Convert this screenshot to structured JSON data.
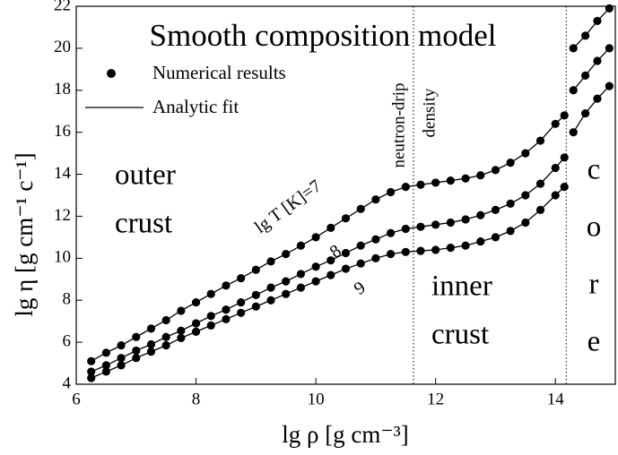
{
  "chart_data": {
    "type": "line",
    "title": "Smooth composition model",
    "x_label": "lg ρ  [g cm⁻³]",
    "y_label": "lg η  [g cm⁻¹ c⁻¹]",
    "xlim": [
      6,
      15
    ],
    "xticks": [
      6,
      8,
      10,
      12,
      14
    ],
    "ylim": [
      4,
      22
    ],
    "yticks": [
      4,
      6,
      8,
      10,
      12,
      14,
      16,
      18,
      20,
      22
    ],
    "legend": [
      "Numerical results",
      "Analytic fit"
    ],
    "reference_lines": [
      11.63,
      14.18
    ],
    "annotations": [
      "outer",
      "crust",
      "inner",
      "crust",
      "c",
      "o",
      "r",
      "e",
      "neutron-drip",
      "density"
    ],
    "x": [
      6.25,
      6.5,
      6.75,
      7,
      7.25,
      7.5,
      7.75,
      8,
      8.25,
      8.5,
      8.75,
      9,
      9.25,
      9.5,
      9.75,
      10,
      10.25,
      10.5,
      10.75,
      11,
      11.25,
      11.5,
      11.75,
      12,
      12.25,
      12.5,
      12.75,
      13,
      13.25,
      13.5,
      13.75,
      14,
      14.15,
      14.2,
      14.3,
      14.5,
      14.7,
      14.9
    ],
    "series": [
      {
        "name": "lg T [K]=7",
        "color": "#000000",
        "values": [
          5.1,
          5.5,
          5.85,
          6.25,
          6.65,
          7.05,
          7.5,
          7.9,
          8.3,
          8.7,
          9.05,
          9.45,
          9.85,
          10.2,
          10.6,
          11.0,
          11.45,
          11.9,
          12.35,
          12.8,
          13.15,
          13.4,
          13.5,
          13.6,
          13.7,
          13.8,
          13.95,
          14.2,
          14.55,
          15.0,
          15.6,
          16.4,
          16.8,
          null,
          20.0,
          20.6,
          21.3,
          21.9
        ]
      },
      {
        "name": "8",
        "color": "#000000",
        "values": [
          4.6,
          4.9,
          5.25,
          5.6,
          5.9,
          6.25,
          6.55,
          6.9,
          7.25,
          7.55,
          7.9,
          8.25,
          8.6,
          8.9,
          9.25,
          9.6,
          9.9,
          10.25,
          10.6,
          10.9,
          11.2,
          11.4,
          11.5,
          11.6,
          11.7,
          11.85,
          12.05,
          12.3,
          12.6,
          13.0,
          13.55,
          14.3,
          14.8,
          null,
          18.0,
          18.7,
          19.4,
          20.0
        ]
      },
      {
        "name": "9",
        "color": "#000000",
        "values": [
          4.3,
          4.6,
          4.9,
          5.25,
          5.55,
          5.85,
          6.2,
          6.5,
          6.8,
          7.1,
          7.4,
          7.7,
          8.0,
          8.3,
          8.6,
          8.9,
          9.2,
          9.5,
          9.75,
          10.0,
          10.2,
          10.3,
          10.35,
          10.4,
          10.5,
          10.6,
          10.8,
          11.0,
          11.3,
          11.7,
          12.3,
          13.0,
          13.4,
          null,
          16.0,
          16.9,
          17.6,
          18.2
        ]
      }
    ]
  }
}
